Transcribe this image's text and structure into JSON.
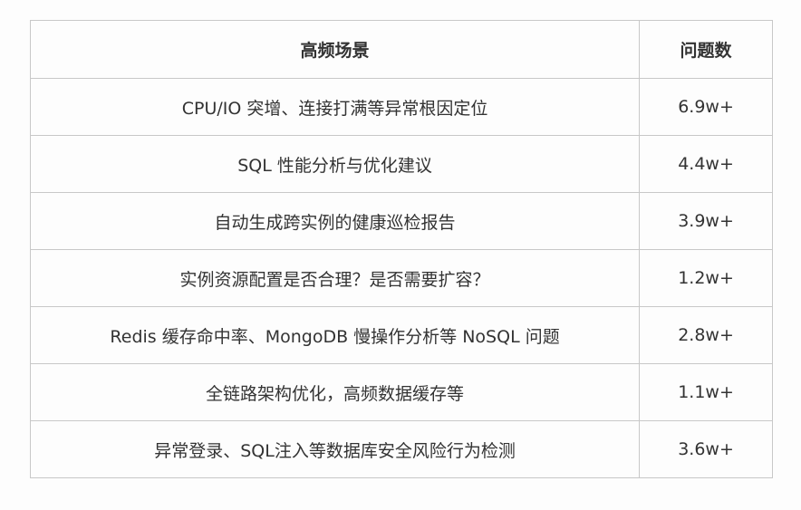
{
  "table": {
    "headers": [
      "高频场景",
      "问题数"
    ],
    "rows": [
      [
        "CPU/IO 突增、连接打满等异常根因定位",
        "6.9w+"
      ],
      [
        "SQL 性能分析与优化建议",
        "4.4w+"
      ],
      [
        "自动生成跨实例的健康巡检报告",
        "3.9w+"
      ],
      [
        "实例资源配置是否合理？是否需要扩容？",
        "1.2w+"
      ],
      [
        "Redis 缓存命中率、MongoDB 慢操作分析等 NoSQL 问题",
        "2.8w+"
      ],
      [
        "全链路架构优化，高频数据缓存等",
        "1.1w+"
      ],
      [
        "异常登录、SQL注入等数据库安全风险行为检测",
        "3.6w+"
      ]
    ]
  }
}
